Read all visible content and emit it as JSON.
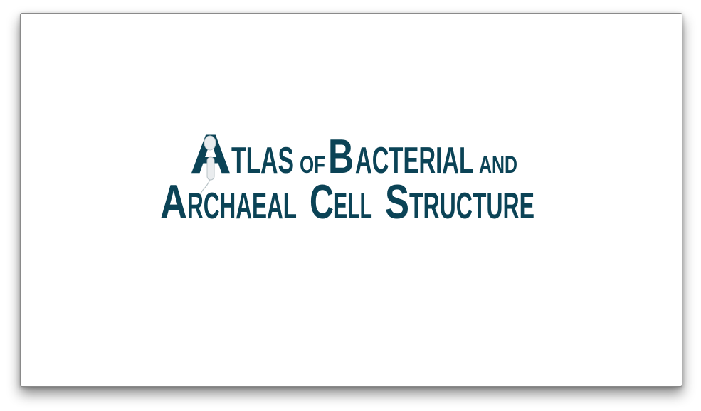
{
  "slide": {
    "title_line1": {
      "initial": "A",
      "word1": "TLAS",
      "word2": "OF",
      "initial2": "B",
      "word3": "ACTERIAL",
      "word4": "AND"
    },
    "title_line2": {
      "initial": "A",
      "word1": "RCHAEAL",
      "initial2": "C",
      "word2": "ELL",
      "initial3": "S",
      "word3": "TRUCTURE"
    },
    "text_color": "#0b4356",
    "background_color": "#ffffff"
  }
}
